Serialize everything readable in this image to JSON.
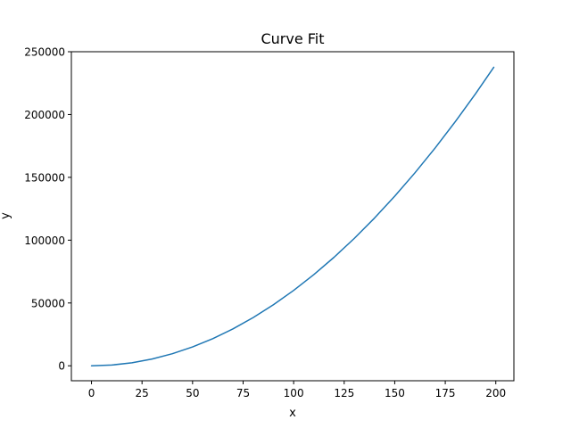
{
  "chart_data": {
    "type": "line",
    "title": "Curve Fit",
    "xlabel": "x",
    "ylabel": "y",
    "xlim": [
      -9.95,
      208.95
    ],
    "ylim": [
      -11900,
      250000
    ],
    "xticks": [
      0,
      25,
      50,
      75,
      100,
      125,
      150,
      175,
      200
    ],
    "yticks": [
      0,
      50000,
      100000,
      150000,
      200000,
      250000
    ],
    "grid": false,
    "legend": "none",
    "series": [
      {
        "color": "#1f77b4",
        "x": [
          0,
          10,
          20,
          30,
          40,
          50,
          60,
          70,
          80,
          90,
          100,
          110,
          120,
          130,
          140,
          150,
          160,
          170,
          180,
          190,
          199
        ],
        "y": [
          0,
          600,
          2400,
          5400,
          9600,
          15000,
          21600,
          29400,
          38400,
          48600,
          60000,
          72600,
          86400,
          101400,
          117600,
          135000,
          153600,
          173400,
          194400,
          216600,
          237606
        ]
      }
    ]
  }
}
